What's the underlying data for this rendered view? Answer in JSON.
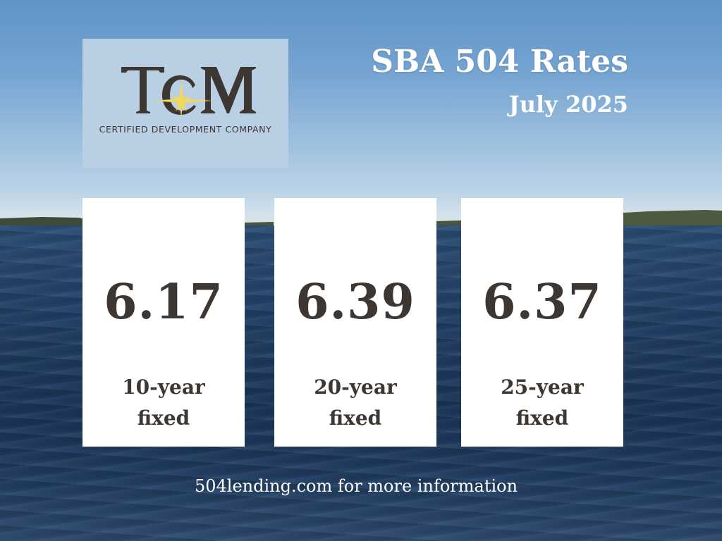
{
  "logo": {
    "monogram": "TCM",
    "subtitle": "CERTIFIED DEVELOPMENT COMPANY",
    "accent_color": "#f2d95a",
    "text_color": "#3d3733"
  },
  "header": {
    "title": "SBA 504 Rates",
    "date": "July 2025"
  },
  "rates": [
    {
      "value": "6.17",
      "term_line1": "10-year",
      "term_line2": "fixed"
    },
    {
      "value": "6.39",
      "term_line1": "20-year",
      "term_line2": "fixed"
    },
    {
      "value": "6.37",
      "term_line1": "25-year",
      "term_line2": "fixed"
    }
  ],
  "footer": {
    "text": "504lending.com for more information"
  },
  "colors": {
    "sky_top": "#5f93c7",
    "water": "#223f63",
    "card": "#ffffff",
    "card_text": "#3d3733"
  }
}
